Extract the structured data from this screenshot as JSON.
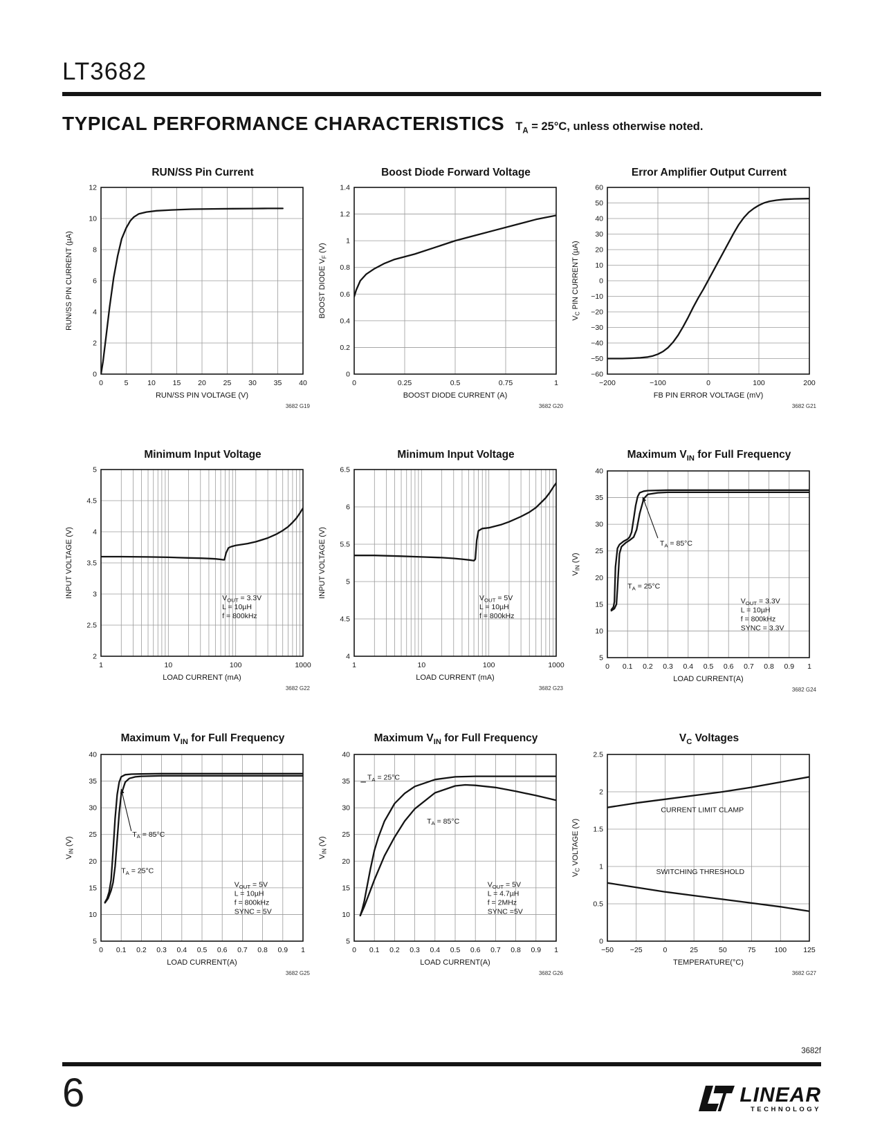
{
  "page": {
    "part_number": "LT3682",
    "section_title": "TYPICAL PERFORMANCE CHARACTERISTICS",
    "section_note": "T~A~ = 25°C, unless otherwise noted.",
    "footer_code": "3682f",
    "page_number": "6",
    "logo": {
      "name": "LINEAR",
      "sub": "TECHNOLOGY"
    }
  },
  "chart_data": [
    {
      "type": "line",
      "title": "RUN/SS Pin Current",
      "xlabel": "RUN/SS PIN VOLTAGE (V)",
      "ylabel": "RUN/SS PIN CURRENT (µA)",
      "xscale": "linear",
      "xlim": [
        0,
        40
      ],
      "ylim": [
        0,
        12
      ],
      "xticks": [
        0,
        5,
        10,
        15,
        20,
        25,
        30,
        35,
        40
      ],
      "yticks": [
        0,
        2,
        4,
        6,
        8,
        10,
        12
      ],
      "series": [
        {
          "name": "run-ss-current",
          "x": [
            0,
            0.4,
            1,
            1.7,
            2.5,
            3.3,
            4.1,
            5,
            5.8,
            6.5,
            7.5,
            9,
            11,
            14,
            18,
            22,
            26,
            30,
            33,
            36
          ],
          "y": [
            0,
            0.8,
            2.4,
            4.3,
            6.2,
            7.6,
            8.7,
            9.4,
            9.85,
            10.1,
            10.3,
            10.42,
            10.5,
            10.55,
            10.6,
            10.62,
            10.63,
            10.64,
            10.65,
            10.65
          ]
        }
      ],
      "annotations": [],
      "arrows": [],
      "ref": "3682 G19"
    },
    {
      "type": "line",
      "title": "Boost Diode Forward Voltage",
      "xlabel": "BOOST DIODE CURRENT (A)",
      "ylabel": "BOOST DIODE V~F~ (V)",
      "xscale": "linear",
      "xlim": [
        0,
        1
      ],
      "ylim": [
        0,
        1.4
      ],
      "xticks": [
        0,
        0.25,
        0.5,
        0.75,
        1
      ],
      "yticks": [
        0,
        0.2,
        0.4,
        0.6,
        0.8,
        1,
        1.2,
        1.4
      ],
      "series": [
        {
          "name": "boost-diode-vf",
          "x": [
            0,
            0.01,
            0.03,
            0.06,
            0.1,
            0.15,
            0.2,
            0.25,
            0.3,
            0.4,
            0.5,
            0.6,
            0.7,
            0.8,
            0.9,
            1.0
          ],
          "y": [
            0.58,
            0.63,
            0.7,
            0.75,
            0.79,
            0.83,
            0.86,
            0.88,
            0.9,
            0.95,
            1.0,
            1.04,
            1.08,
            1.12,
            1.16,
            1.19
          ]
        }
      ],
      "annotations": [],
      "arrows": [],
      "ref": "3682 G20"
    },
    {
      "type": "line",
      "title": "Error Amplifier Output Current",
      "xlabel": "FB PIN ERROR VOLTAGE (mV)",
      "ylabel": "V~C~ PIN CURRENT (µA)",
      "xscale": "linear",
      "xlim": [
        -200,
        200
      ],
      "ylim": [
        -60,
        60
      ],
      "xticks": [
        -200,
        -100,
        0,
        100,
        200
      ],
      "yticks": [
        -60,
        -50,
        -40,
        -30,
        -20,
        -10,
        0,
        10,
        20,
        30,
        40,
        50,
        60
      ],
      "series": [
        {
          "name": "error-amp-current",
          "x": [
            -200,
            -170,
            -150,
            -135,
            -120,
            -110,
            -100,
            -90,
            -80,
            -70,
            -60,
            -50,
            -40,
            -30,
            -20,
            -10,
            0,
            10,
            20,
            30,
            40,
            50,
            60,
            70,
            80,
            90,
            100,
            110,
            120,
            135,
            150,
            170,
            200
          ],
          "y": [
            -50,
            -50,
            -49.8,
            -49.5,
            -49,
            -48.3,
            -47.2,
            -45.5,
            -43,
            -39.5,
            -35,
            -29.5,
            -23.5,
            -17,
            -11,
            -5.5,
            0.5,
            6.5,
            12.5,
            18.5,
            24.5,
            30.5,
            36,
            40.5,
            44,
            46.5,
            48.5,
            50,
            51,
            51.8,
            52.3,
            52.6,
            52.8
          ]
        }
      ],
      "annotations": [],
      "arrows": [],
      "ref": "3682 G21"
    },
    {
      "type": "line",
      "title": "Minimum Input Voltage",
      "xlabel": "LOAD CURRENT (mA)",
      "ylabel": "INPUT VOLTAGE (V)",
      "xscale": "log",
      "xlim": [
        1,
        1000
      ],
      "ylim": [
        2,
        5
      ],
      "xticks": [
        1,
        10,
        100,
        1000
      ],
      "yticks": [
        2,
        2.5,
        3,
        3.5,
        4,
        4.5,
        5
      ],
      "series": [
        {
          "name": "min-vin-3v3",
          "x": [
            1,
            2,
            5,
            10,
            20,
            30,
            40,
            50,
            60,
            65,
            68,
            72,
            78,
            85,
            100,
            150,
            200,
            300,
            400,
            500,
            600,
            700,
            800,
            900,
            1000
          ],
          "y": [
            3.6,
            3.6,
            3.595,
            3.59,
            3.58,
            3.575,
            3.57,
            3.565,
            3.555,
            3.55,
            3.55,
            3.66,
            3.74,
            3.76,
            3.78,
            3.81,
            3.84,
            3.9,
            3.96,
            4.02,
            4.08,
            4.15,
            4.22,
            4.3,
            4.38
          ]
        }
      ],
      "annotations": [
        {
          "lines": [
            "V~OUT~ = 3.3V",
            "L = 10µH",
            "f = 800kHz"
          ],
          "fx": 0.6,
          "fy": 0.7,
          "anchor": "start"
        }
      ],
      "arrows": [],
      "ref": "3682 G22"
    },
    {
      "type": "line",
      "title": "Minimum Input Voltage",
      "xlabel": "LOAD CURRENT (mA)",
      "ylabel": "INPUT VOLTAGE (V)",
      "xscale": "log",
      "xlim": [
        1,
        1000
      ],
      "ylim": [
        4,
        6.5
      ],
      "xticks": [
        1,
        10,
        100,
        1000
      ],
      "yticks": [
        4,
        4.5,
        5,
        5.5,
        6,
        6.5
      ],
      "series": [
        {
          "name": "min-vin-5v",
          "x": [
            1,
            2,
            5,
            10,
            20,
            30,
            40,
            50,
            55,
            60,
            63,
            66,
            70,
            80,
            100,
            150,
            200,
            300,
            400,
            500,
            600,
            700,
            800,
            900,
            1000
          ],
          "y": [
            5.35,
            5.35,
            5.34,
            5.33,
            5.32,
            5.31,
            5.3,
            5.29,
            5.285,
            5.28,
            5.3,
            5.55,
            5.68,
            5.71,
            5.72,
            5.76,
            5.8,
            5.87,
            5.93,
            5.99,
            6.06,
            6.12,
            6.19,
            6.26,
            6.32
          ]
        }
      ],
      "annotations": [
        {
          "lines": [
            "V~OUT~ = 5V",
            "L = 10µH",
            "f = 800kHz"
          ],
          "fx": 0.62,
          "fy": 0.7,
          "anchor": "start"
        }
      ],
      "arrows": [],
      "ref": "3682 G23"
    },
    {
      "type": "line",
      "title": "Maximum V~IN~ for Full Frequency",
      "xlabel": "LOAD CURRENT(A)",
      "ylabel": "V~IN~ (V)",
      "xscale": "linear",
      "xlim": [
        0,
        1
      ],
      "ylim": [
        5,
        40
      ],
      "xticks": [
        0,
        0.1,
        0.2,
        0.3,
        0.4,
        0.5,
        0.6,
        0.7,
        0.8,
        0.9,
        1
      ],
      "yticks": [
        5,
        10,
        15,
        20,
        25,
        30,
        35,
        40
      ],
      "series": [
        {
          "name": "ta-85c",
          "x": [
            0.02,
            0.03,
            0.035,
            0.04,
            0.05,
            0.06,
            0.08,
            0.1,
            0.11,
            0.12,
            0.13,
            0.14,
            0.15,
            0.16,
            0.18,
            0.2,
            0.25,
            0.3,
            0.5,
            1.0
          ],
          "y": [
            14.0,
            14.5,
            15.5,
            22,
            25.5,
            26.2,
            26.8,
            27.2,
            27.6,
            28.5,
            31,
            33.5,
            35.2,
            35.9,
            36.2,
            36.3,
            36.35,
            36.4,
            36.4,
            36.4
          ]
        },
        {
          "name": "ta-25c",
          "x": [
            0.02,
            0.035,
            0.045,
            0.05,
            0.06,
            0.07,
            0.09,
            0.11,
            0.13,
            0.145,
            0.16,
            0.18,
            0.2,
            0.25,
            0.3,
            0.5,
            1.0
          ],
          "y": [
            13.8,
            14.2,
            15.0,
            18,
            24.5,
            25.8,
            26.5,
            27.0,
            27.6,
            29,
            32,
            34.8,
            35.6,
            35.9,
            36.0,
            36.0,
            36.0
          ]
        }
      ],
      "annotations": [
        {
          "lines": [
            "T~A~ = 85°C"
          ],
          "fx": 0.26,
          "fy": 0.4,
          "anchor": "start"
        },
        {
          "lines": [
            "T~A~ = 25°C"
          ],
          "fx": 0.1,
          "fy": 0.63,
          "anchor": "start"
        },
        {
          "lines": [
            "V~OUT~ = 3.3V",
            "L = 10µH",
            "f = 800kHz",
            "SYNC = 3.3V"
          ],
          "fx": 0.66,
          "fy": 0.71,
          "anchor": "start"
        }
      ],
      "arrows": [
        {
          "fx1": 0.25,
          "fy1": 0.36,
          "fx2": 0.175,
          "fy2": 0.14,
          "head": true
        }
      ],
      "ref": "3682 G24"
    },
    {
      "type": "line",
      "title": "Maximum V~IN~ for Full Frequency",
      "xlabel": "LOAD CURRENT(A)",
      "ylabel": "V~IN~ (V)",
      "xscale": "linear",
      "xlim": [
        0,
        1
      ],
      "ylim": [
        5,
        40
      ],
      "xticks": [
        0,
        0.1,
        0.2,
        0.3,
        0.4,
        0.5,
        0.6,
        0.7,
        0.8,
        0.9,
        1
      ],
      "yticks": [
        5,
        10,
        15,
        20,
        25,
        30,
        35,
        40
      ],
      "series": [
        {
          "name": "ta-85c",
          "x": [
            0.02,
            0.03,
            0.04,
            0.05,
            0.06,
            0.07,
            0.08,
            0.09,
            0.1,
            0.12,
            0.15,
            0.2,
            0.3,
            0.5,
            1.0
          ],
          "y": [
            12.3,
            13.0,
            14.2,
            16.5,
            22,
            28,
            32.5,
            34.8,
            35.8,
            36.2,
            36.3,
            36.35,
            36.4,
            36.4,
            36.4
          ]
        },
        {
          "name": "ta-25c",
          "x": [
            0.02,
            0.035,
            0.05,
            0.06,
            0.07,
            0.08,
            0.09,
            0.1,
            0.12,
            0.14,
            0.17,
            0.2,
            0.3,
            0.5,
            1.0
          ],
          "y": [
            12.2,
            13.0,
            14.5,
            16,
            19,
            24,
            29,
            32.5,
            34.8,
            35.5,
            35.8,
            35.9,
            36.0,
            36.0,
            36.0
          ]
        }
      ],
      "annotations": [
        {
          "lines": [
            "T~A~ = 85°C"
          ],
          "fx": 0.155,
          "fy": 0.44,
          "anchor": "start"
        },
        {
          "lines": [
            "T~A~ = 25°C"
          ],
          "fx": 0.1,
          "fy": 0.635,
          "anchor": "start"
        },
        {
          "lines": [
            "V~OUT~ = 5V",
            "L = 10µH",
            "f = 800kHz",
            "SYNC = 5V"
          ],
          "fx": 0.66,
          "fy": 0.71,
          "anchor": "start"
        }
      ],
      "arrows": [
        {
          "fx1": 0.15,
          "fy1": 0.41,
          "fx2": 0.1,
          "fy2": 0.185,
          "head": true
        }
      ],
      "ref": "3682 G25"
    },
    {
      "type": "line",
      "title": "Maximum V~IN~ for Full Frequency",
      "xlabel": "LOAD CURRENT(A)",
      "ylabel": "V~IN~ (V)",
      "xscale": "linear",
      "xlim": [
        0,
        1
      ],
      "ylim": [
        5,
        40
      ],
      "xticks": [
        0,
        0.1,
        0.2,
        0.3,
        0.4,
        0.5,
        0.6,
        0.7,
        0.8,
        0.9,
        1
      ],
      "yticks": [
        5,
        10,
        15,
        20,
        25,
        30,
        35,
        40
      ],
      "series": [
        {
          "name": "ta-25c",
          "x": [
            0.03,
            0.04,
            0.05,
            0.06,
            0.08,
            0.1,
            0.12,
            0.15,
            0.2,
            0.25,
            0.3,
            0.4,
            0.5,
            0.6,
            0.8,
            1.0
          ],
          "y": [
            9.8,
            11,
            12.5,
            14.5,
            18.5,
            22,
            24.5,
            27.5,
            30.8,
            32.7,
            34,
            35.3,
            35.8,
            35.9,
            35.9,
            35.9
          ]
        },
        {
          "name": "ta-85c",
          "x": [
            0.03,
            0.05,
            0.08,
            0.1,
            0.15,
            0.2,
            0.25,
            0.3,
            0.4,
            0.5,
            0.55,
            0.6,
            0.7,
            0.8,
            0.9,
            1.0
          ],
          "y": [
            9.8,
            11.5,
            14.5,
            16.5,
            21,
            24.5,
            27.5,
            29.8,
            32.8,
            34.1,
            34.3,
            34.2,
            33.8,
            33.1,
            32.3,
            31.4
          ]
        }
      ],
      "annotations": [
        {
          "lines": [
            "T~A~ = 25°C"
          ],
          "fx": 0.065,
          "fy": 0.135,
          "anchor": "start"
        },
        {
          "lines": [
            "T~A~ = 85°C"
          ],
          "fx": 0.36,
          "fy": 0.37,
          "anchor": "start"
        },
        {
          "lines": [
            "V~OUT~ = 5V",
            "L = 4.7µH",
            "f = 2MHz",
            "SYNC =5V"
          ],
          "fx": 0.66,
          "fy": 0.71,
          "anchor": "start"
        }
      ],
      "arrows": [
        {
          "fx1": 0.032,
          "fy1": 0.148,
          "fx2": 0.058,
          "fy2": 0.148,
          "head": false
        }
      ],
      "ref": "3682 G26"
    },
    {
      "type": "line",
      "title": "V~C~ Voltages",
      "xlabel": "TEMPERATURE(°C)",
      "ylabel": "V~C~ VOLTAGE (V)",
      "xscale": "linear",
      "xlim": [
        -50,
        125
      ],
      "ylim": [
        0,
        2.5
      ],
      "xticks": [
        -50,
        -25,
        0,
        25,
        50,
        75,
        100,
        125
      ],
      "yticks": [
        0,
        0.5,
        1,
        1.5,
        2,
        2.5
      ],
      "series": [
        {
          "name": "current-limit-clamp",
          "x": [
            -50,
            -25,
            0,
            25,
            50,
            75,
            100,
            125
          ],
          "y": [
            1.79,
            1.85,
            1.9,
            1.95,
            2.0,
            2.06,
            2.13,
            2.2
          ]
        },
        {
          "name": "switching-threshold",
          "x": [
            -50,
            -25,
            0,
            25,
            50,
            75,
            100,
            125
          ],
          "y": [
            0.78,
            0.72,
            0.66,
            0.61,
            0.56,
            0.51,
            0.46,
            0.4
          ]
        }
      ],
      "annotations": [
        {
          "lines": [
            "CURRENT LIMIT CLAMP"
          ],
          "fx": 0.47,
          "fy": 0.31,
          "anchor": "middle"
        },
        {
          "lines": [
            "SWITCHING THRESHOLD"
          ],
          "fx": 0.46,
          "fy": 0.64,
          "anchor": "middle"
        }
      ],
      "arrows": [],
      "ref": "3682 G27"
    }
  ]
}
